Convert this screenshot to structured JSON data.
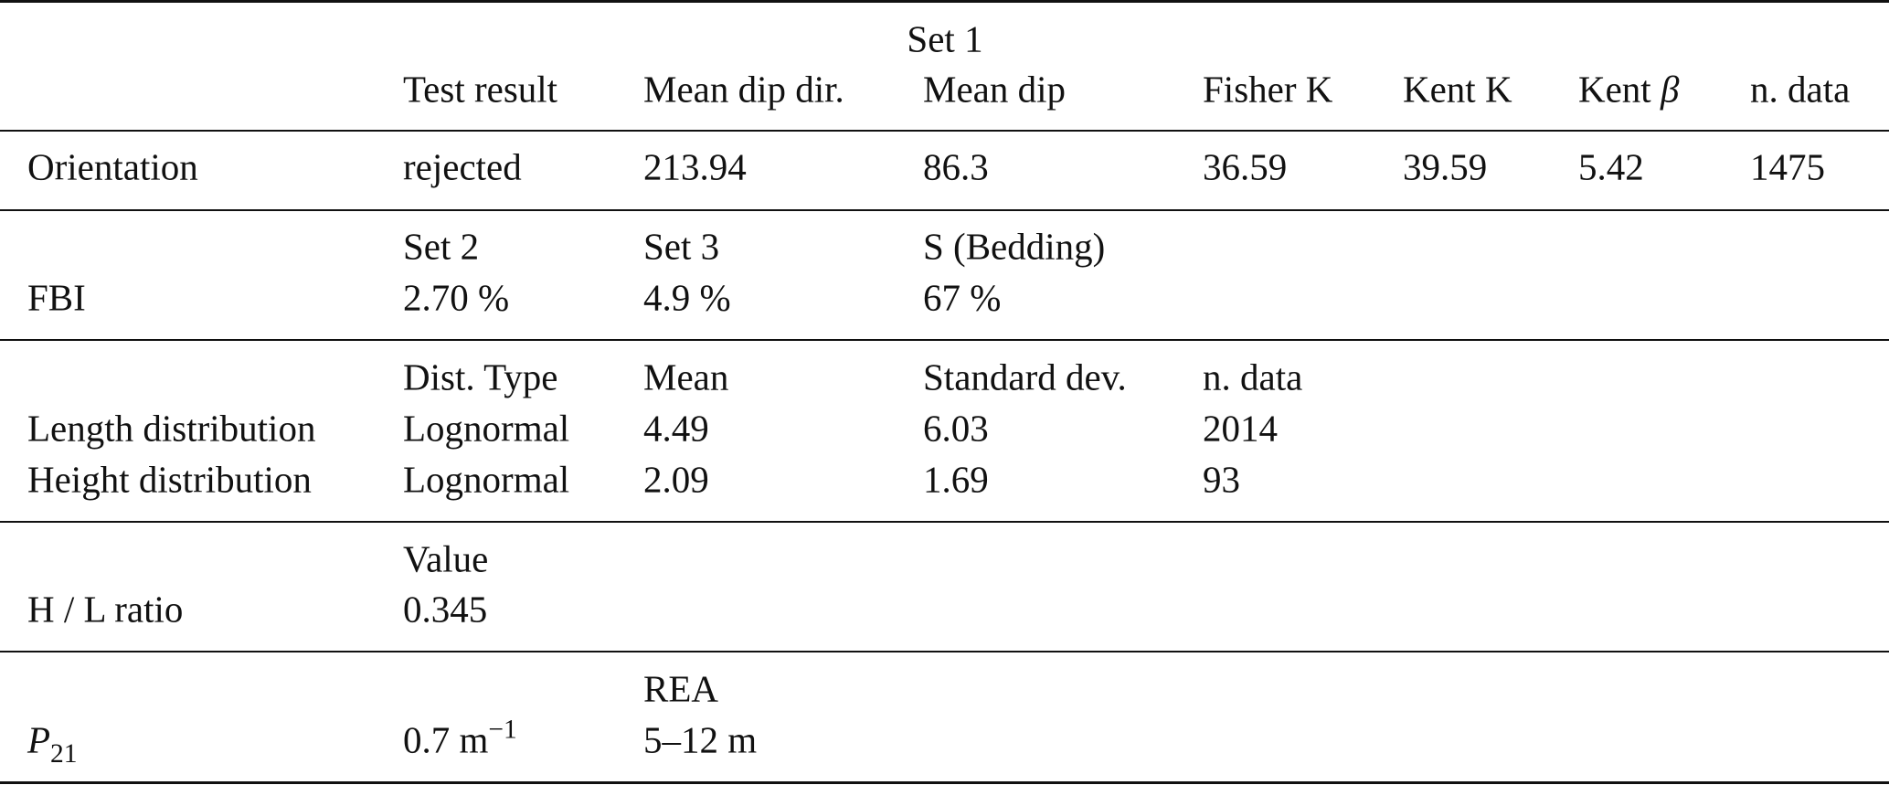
{
  "set1": {
    "label": "Set 1",
    "headers": [
      "Test result",
      "Mean dip dir.",
      "Mean dip",
      "Fisher K",
      "Kent K",
      "Kent β",
      "n. data"
    ]
  },
  "orientation": {
    "label": "Orientation",
    "values": [
      "rejected",
      "213.94",
      "86.3",
      "36.59",
      "39.59",
      "5.42",
      "1475"
    ]
  },
  "fbi": {
    "label": "FBI",
    "headers": [
      "Set 2",
      "Set 3",
      "S (Bedding)"
    ],
    "values": [
      "2.70 %",
      "4.9 %",
      "67 %"
    ]
  },
  "distribution": {
    "headers": [
      "Dist. Type",
      "Mean",
      "Standard dev.",
      "n. data"
    ],
    "rows": [
      {
        "label": "Length distribution",
        "values": [
          "Lognormal",
          "4.49",
          "6.03",
          "2014"
        ]
      },
      {
        "label": "Height distribution",
        "values": [
          "Lognormal",
          "2.09",
          "1.69",
          "93"
        ]
      }
    ]
  },
  "hl_ratio": {
    "label": "H / L ratio",
    "header": "Value",
    "value": "0.345"
  },
  "p21": {
    "label_main": "P",
    "label_sub": "21",
    "value_main": "0.7 m",
    "value_sup": "−1",
    "header": "REA",
    "rea": "5–12 m"
  }
}
